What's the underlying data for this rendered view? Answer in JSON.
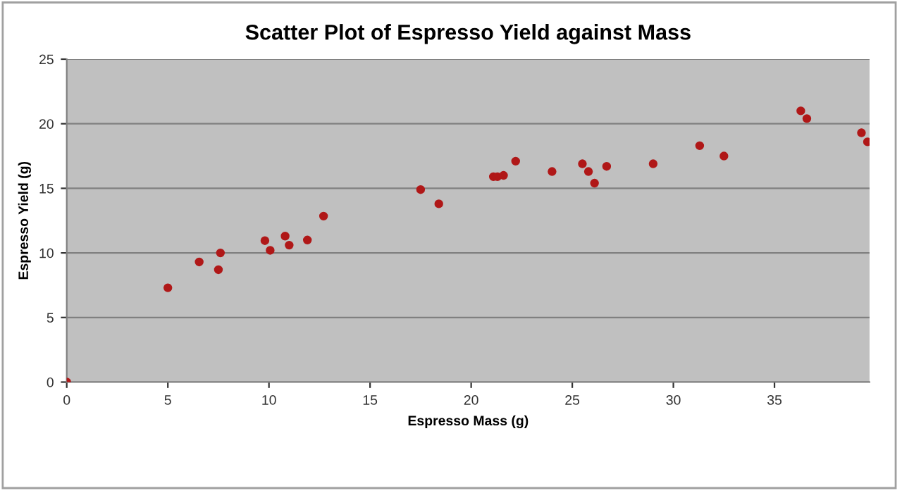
{
  "chart_data": {
    "type": "scatter",
    "title": "Scatter Plot of Espresso Yield against Mass",
    "xlabel": "Espresso Mass (g)",
    "ylabel": "Espresso Yield (g)",
    "x": [
      0,
      5.0,
      6.55,
      7.5,
      7.6,
      9.8,
      10.06,
      10.8,
      11.0,
      11.9,
      12.7,
      17.5,
      18.4,
      21.1,
      21.3,
      21.6,
      22.2,
      24.0,
      25.5,
      25.8,
      26.1,
      26.7,
      29.0,
      31.3,
      32.5,
      36.3,
      36.6,
      39.3,
      39.6
    ],
    "values": [
      0,
      7.3,
      9.3,
      8.7,
      10.0,
      10.95,
      10.2,
      11.3,
      10.6,
      11.0,
      12.85,
      14.9,
      13.8,
      15.9,
      15.9,
      16.0,
      17.1,
      16.3,
      16.9,
      16.3,
      15.4,
      16.7,
      16.9,
      18.3,
      17.5,
      21.0,
      20.4,
      19.3,
      18.6
    ],
    "color": "#b01818",
    "marker": "circle",
    "xlim": [
      0,
      39.7
    ],
    "ylim": [
      0,
      25
    ],
    "xticks": [
      0,
      5,
      10,
      15,
      20,
      25,
      30,
      35
    ],
    "yticks": [
      0,
      5,
      10,
      15,
      20,
      25
    ],
    "grid": "y",
    "legend": false
  }
}
